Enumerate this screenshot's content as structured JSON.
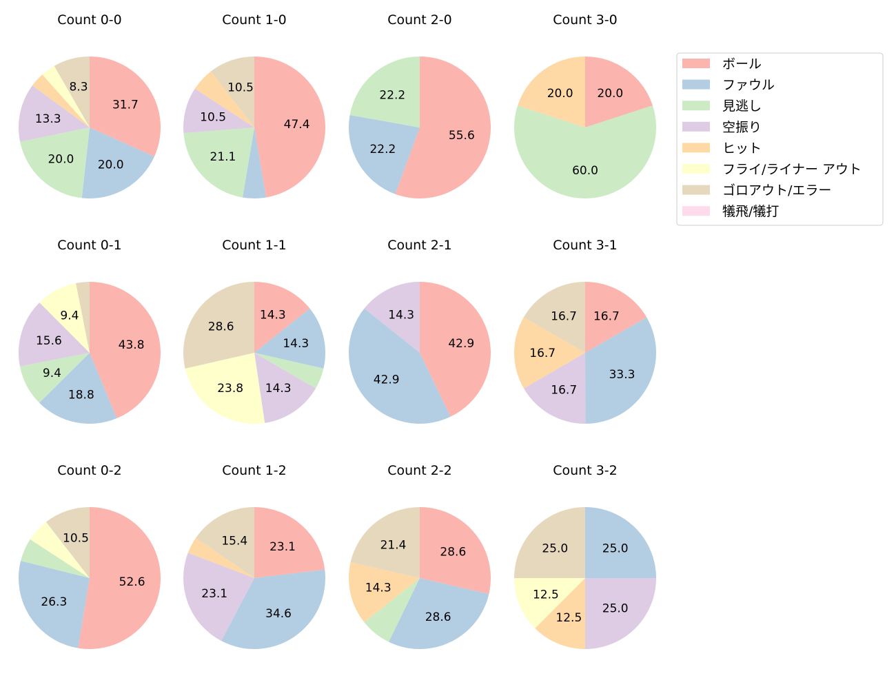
{
  "chart_data": {
    "type": "pie",
    "start_angle_deg": 90,
    "direction": "clockwise",
    "label_min_percent": 8,
    "legend": {
      "placement": "upper-right",
      "entries": [
        "ボール",
        "ファウル",
        "見逃し",
        "空振り",
        "ヒット",
        "フライ/ライナー アウト",
        "ゴロアウト/エラー",
        "犠飛/犠打"
      ]
    },
    "colors": [
      "#fbb4ae",
      "#b3cde3",
      "#ccebc5",
      "#decbe4",
      "#fed9a6",
      "#ffffcc",
      "#e5d8bd",
      "#fddaec"
    ],
    "pies": [
      {
        "title": "Count 0-0",
        "values": [
          31.7,
          20.0,
          20.0,
          13.3,
          3.3,
          3.3,
          8.3,
          0
        ]
      },
      {
        "title": "Count 1-0",
        "values": [
          47.4,
          5.3,
          21.1,
          10.5,
          5.3,
          0,
          10.5,
          0
        ]
      },
      {
        "title": "Count 2-0",
        "values": [
          55.6,
          22.2,
          22.2,
          0,
          0,
          0,
          0,
          0
        ]
      },
      {
        "title": "Count 3-0",
        "values": [
          20.0,
          0,
          60.0,
          0,
          20.0,
          0,
          0,
          0
        ]
      },
      {
        "title": "Count 0-1",
        "values": [
          43.8,
          18.8,
          9.4,
          15.6,
          0,
          9.4,
          3.1,
          0
        ]
      },
      {
        "title": "Count 1-1",
        "values": [
          14.3,
          14.3,
          4.8,
          14.3,
          0,
          23.8,
          28.6,
          0
        ]
      },
      {
        "title": "Count 2-1",
        "values": [
          42.9,
          42.9,
          0,
          14.3,
          0,
          0,
          0,
          0
        ]
      },
      {
        "title": "Count 3-1",
        "values": [
          16.7,
          33.3,
          0,
          16.7,
          16.7,
          0,
          16.7,
          0
        ]
      },
      {
        "title": "Count 0-2",
        "values": [
          52.6,
          26.3,
          5.3,
          0,
          0,
          5.3,
          10.5,
          0
        ]
      },
      {
        "title": "Count 1-2",
        "values": [
          23.1,
          34.6,
          0,
          23.1,
          3.8,
          0,
          15.4,
          0
        ]
      },
      {
        "title": "Count 2-2",
        "values": [
          28.6,
          28.6,
          7.1,
          0,
          14.3,
          0,
          21.4,
          0
        ]
      },
      {
        "title": "Count 3-2",
        "values": [
          0,
          25.0,
          0,
          25.0,
          12.5,
          12.5,
          25.0,
          0
        ]
      }
    ]
  }
}
